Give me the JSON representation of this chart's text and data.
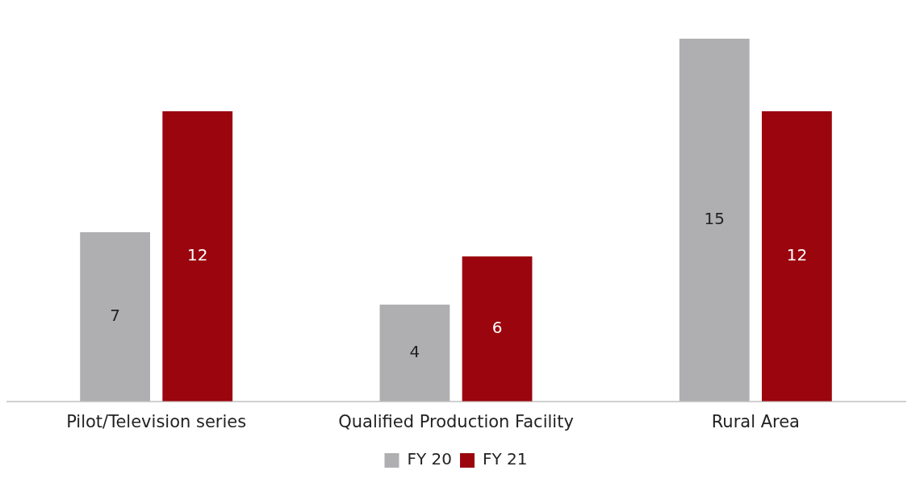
{
  "chart_data": {
    "type": "bar",
    "categories": [
      "Pilot/Television series",
      "Qualified Production Facility",
      "Rural Area"
    ],
    "series": [
      {
        "name": "FY 20",
        "color": "#afafb2",
        "values": [
          7,
          4,
          15
        ]
      },
      {
        "name": "FY 21",
        "color": "#9b050e",
        "values": [
          12,
          6,
          12
        ]
      }
    ],
    "data_labels": true,
    "grid": false,
    "legend": "bottom"
  }
}
